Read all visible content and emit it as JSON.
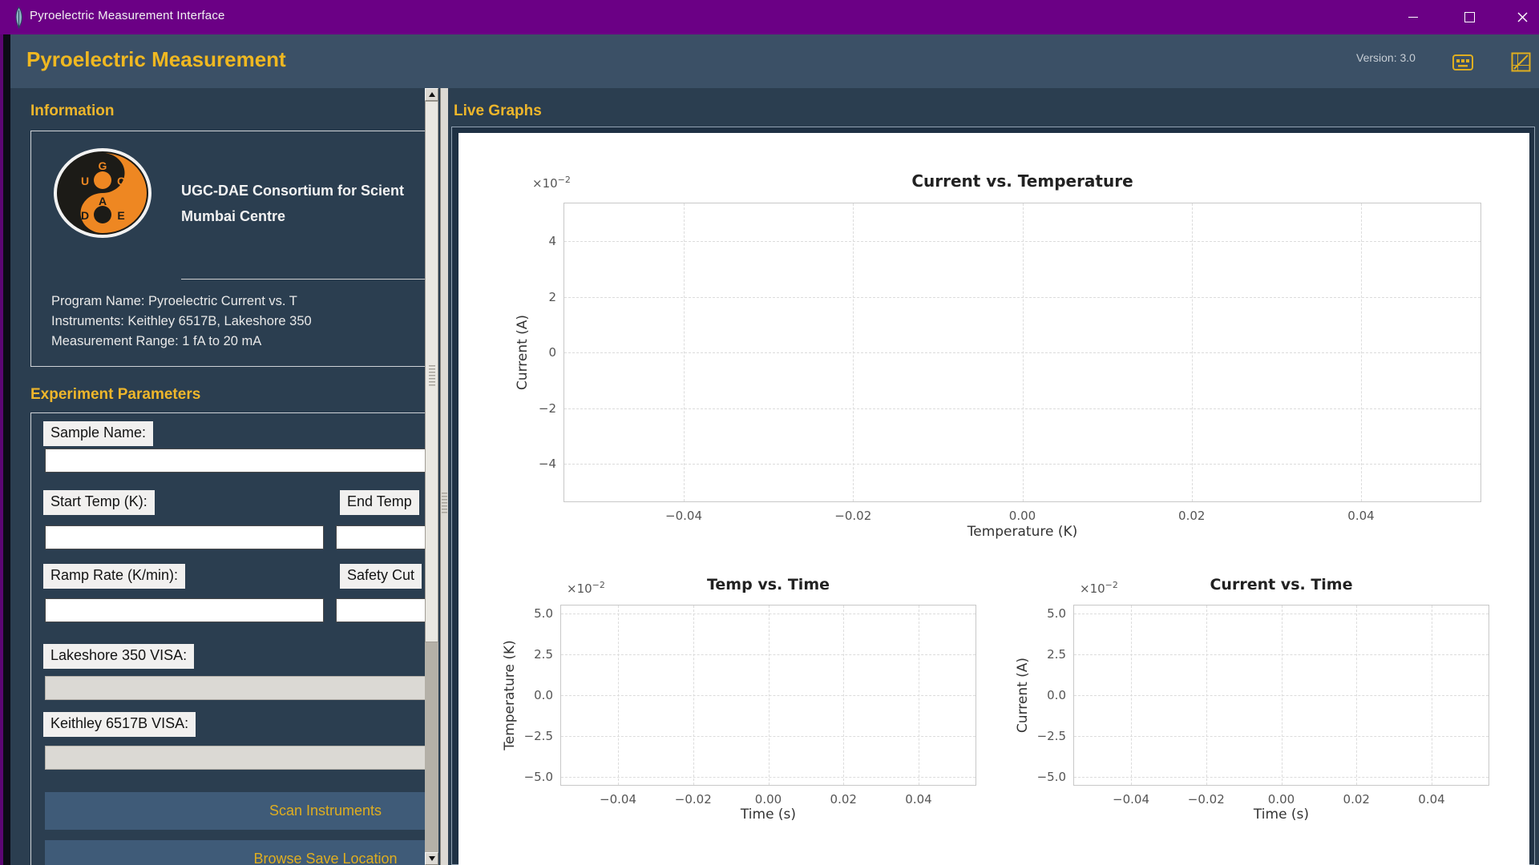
{
  "window": {
    "title": "Pyroelectric Measurement Interface"
  },
  "header": {
    "app_title": "Pyroelectric Measurement",
    "version_label": "Version: 3.0"
  },
  "info_section": {
    "heading": "Information",
    "logo_letters": [
      "G",
      "U",
      "C",
      "A",
      "D",
      "E"
    ],
    "org_line1": "UGC-DAE Consortium for Scient",
    "org_line2": "Mumbai Centre",
    "program_lines": [
      "Program Name: Pyroelectric Current vs. T",
      "Instruments: Keithley 6517B, Lakeshore 350",
      "Measurement Range: 1 fA to 20 mA"
    ]
  },
  "params_section": {
    "heading": "Experiment Parameters",
    "sample_name_label": "Sample Name:",
    "sample_name_value": "",
    "start_temp_label": "Start Temp (K):",
    "start_temp_value": "",
    "end_temp_label": "End Temp",
    "end_temp_value": "",
    "ramp_rate_label": "Ramp Rate (K/min):",
    "ramp_rate_value": "",
    "safety_cutoff_label": "Safety Cut",
    "safety_cutoff_value": "",
    "lakeshore_visa_label": "Lakeshore 350 VISA:",
    "lakeshore_visa_value": "",
    "keithley_visa_label": "Keithley 6517B VISA:",
    "keithley_visa_value": "",
    "scan_button_label": "Scan Instruments",
    "browse_button_label": "Browse Save Location"
  },
  "live_graphs": {
    "heading": "Live Graphs",
    "charts": [
      {
        "type": "line",
        "title": "Current vs. Temperature",
        "xlabel": "Temperature (K)",
        "ylabel": "Current (A)",
        "offset_base": "×10",
        "offset_exp": "−2",
        "xtick_labels": [
          "−0.04",
          "−0.02",
          "0.00",
          "0.02",
          "0.04"
        ],
        "ytick_labels": [
          "4",
          "2",
          "0",
          "−2",
          "−4"
        ],
        "xticks": [
          -0.04,
          -0.02,
          0.0,
          0.02,
          0.04
        ],
        "yticks": [
          0.04,
          0.02,
          0.0,
          -0.02,
          -0.04
        ],
        "xlim": [
          -0.055,
          0.055
        ],
        "ylim": [
          -0.055,
          0.055
        ],
        "grid": true,
        "legend": null,
        "series": []
      },
      {
        "type": "line",
        "title": "Temp vs. Time",
        "xlabel": "Time (s)",
        "ylabel": "Temperature (K)",
        "offset_base": "×10",
        "offset_exp": "−2",
        "xtick_labels": [
          "−0.04",
          "−0.02",
          "0.00",
          "0.02",
          "0.04"
        ],
        "ytick_labels": [
          "5.0",
          "2.5",
          "0.0",
          "−2.5",
          "−5.0"
        ],
        "xticks": [
          -0.04,
          -0.02,
          0.0,
          0.02,
          0.04
        ],
        "yticks": [
          0.05,
          0.025,
          0.0,
          -0.025,
          -0.05
        ],
        "xlim": [
          -0.055,
          0.055
        ],
        "ylim": [
          -0.055,
          0.055
        ],
        "grid": true,
        "legend": null,
        "series": []
      },
      {
        "type": "line",
        "title": "Current vs. Time",
        "xlabel": "Time (s)",
        "ylabel": "Current (A)",
        "offset_base": "×10",
        "offset_exp": "−2",
        "xtick_labels": [
          "−0.04",
          "−0.02",
          "0.00",
          "0.02",
          "0.04"
        ],
        "ytick_labels": [
          "5.0",
          "2.5",
          "0.0",
          "−2.5",
          "−5.0"
        ],
        "xticks": [
          -0.04,
          -0.02,
          0.0,
          0.02,
          0.04
        ],
        "yticks": [
          0.05,
          0.025,
          0.0,
          -0.025,
          -0.05
        ],
        "xlim": [
          -0.055,
          0.055
        ],
        "ylim": [
          -0.055,
          0.055
        ],
        "grid": true,
        "legend": null,
        "series": []
      }
    ]
  },
  "colors": {
    "titlebar_purple": "#6b0085",
    "header_bg": "#3b5066",
    "main_bg": "#2b3e50",
    "accent_gold": "#eeb62b",
    "button_bg": "#3f5b78",
    "logo_orange": "#ee8722",
    "logo_black": "#1c1b17"
  }
}
